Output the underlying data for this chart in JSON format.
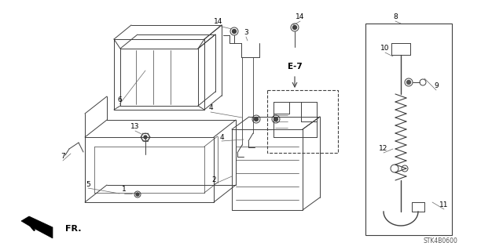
{
  "bg_color": "#ffffff",
  "line_color": "#404040",
  "figsize": [
    6.4,
    3.19
  ],
  "dpi": 100,
  "stk_label": "STK4B0600",
  "fr_label": "FR.",
  "e7_label": "E-7"
}
